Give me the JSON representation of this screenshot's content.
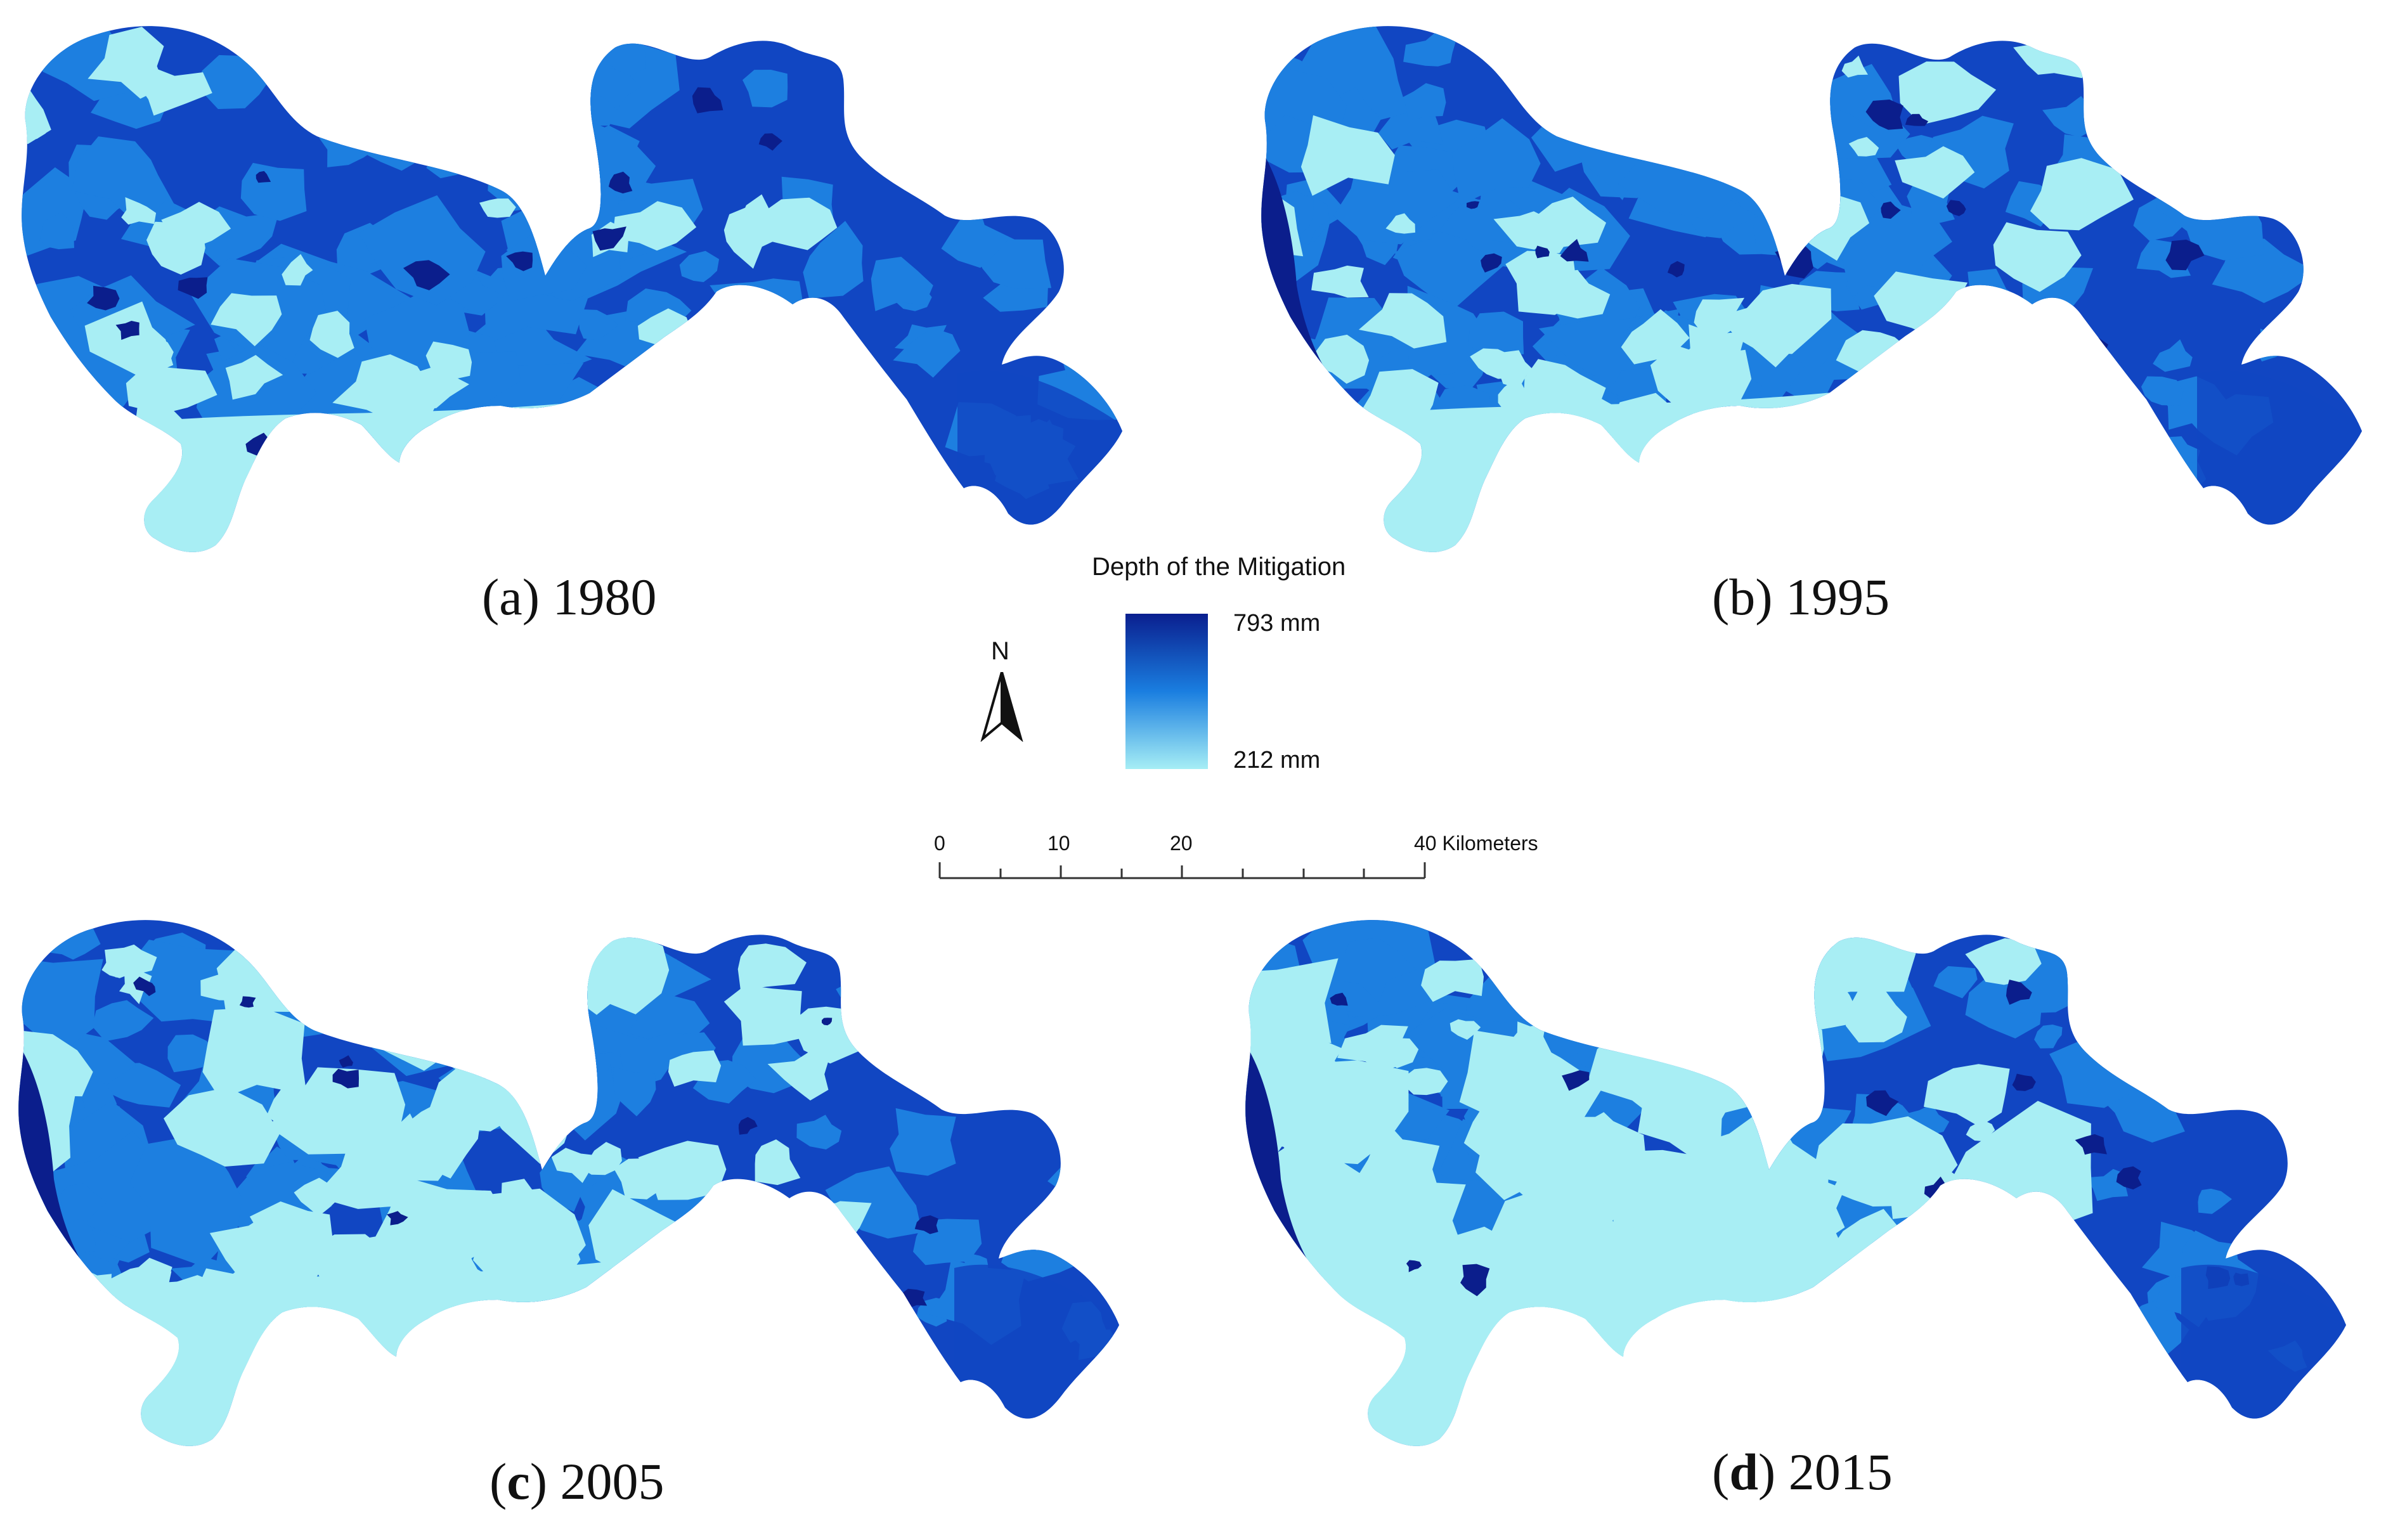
{
  "maps": [
    {
      "id": "a",
      "caption_prefix": "(a) ",
      "caption_bold": "",
      "year": "1980"
    },
    {
      "id": "b",
      "caption_prefix": "(b) ",
      "caption_bold": "",
      "year": "1995"
    },
    {
      "id": "c",
      "caption_prefix": "(",
      "caption_bold": "c",
      "caption_suffix": ") ",
      "year": "2005"
    },
    {
      "id": "d",
      "caption_prefix": "(",
      "caption_bold": "d",
      "caption_suffix": ") ",
      "year": "2015"
    }
  ],
  "legend": {
    "title": "Depth of the Mitigation",
    "max_label": "793 mm",
    "min_label": "212 mm",
    "color_high": "#0a1f8f",
    "color_mid": "#1a7ee0",
    "color_low": "#a6eef5"
  },
  "north_arrow": {
    "letter": "N"
  },
  "scale_bar": {
    "ticks": [
      "0",
      "10",
      "20",
      "40 Kilometers"
    ]
  },
  "colors": {
    "deep": "#0b1e8c",
    "dark": "#1146c2",
    "medium": "#1d7fe0",
    "light": "#a8eef4"
  }
}
